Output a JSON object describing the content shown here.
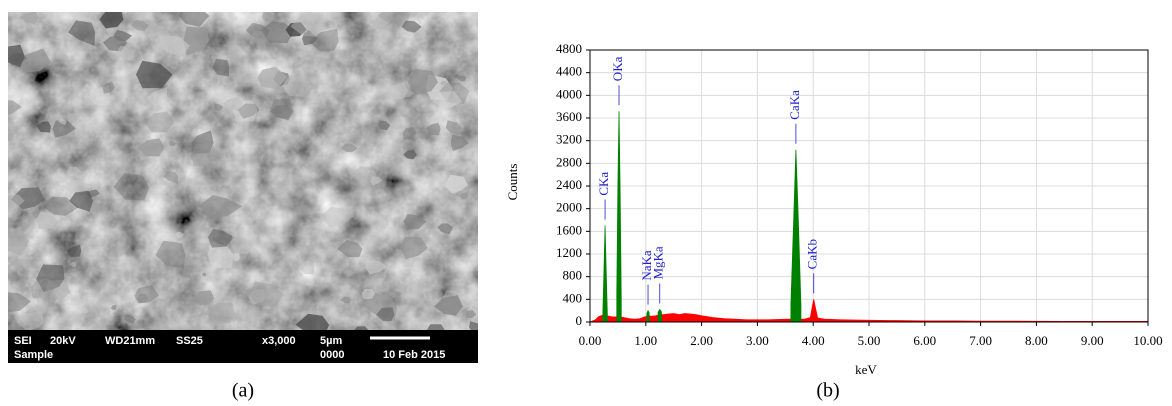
{
  "sem_image": {
    "info_bar": {
      "row1": [
        "SEI",
        "20kV",
        "WD21mm",
        "SS25",
        "x3,000",
        "5µm"
      ],
      "row2": [
        "Sample",
        "0000",
        "10 Feb 2015"
      ]
    }
  },
  "captions": [
    "(a)",
    "(b)"
  ],
  "chart_data": {
    "type": "area",
    "x_label": "keV",
    "y_label": "Counts",
    "x": [
      0,
      0.1,
      0.15,
      0.2,
      0.23,
      0.25,
      0.27,
      0.29,
      0.31,
      0.35,
      0.4,
      0.45,
      0.48,
      0.5,
      0.52,
      0.54,
      0.56,
      0.6,
      0.7,
      0.8,
      0.9,
      0.98,
      1.02,
      1.04,
      1.06,
      1.1,
      1.18,
      1.22,
      1.25,
      1.28,
      1.32,
      1.4,
      1.5,
      1.6,
      1.7,
      1.8,
      1.9,
      2.0,
      2.2,
      2.4,
      2.6,
      2.8,
      3.0,
      3.2,
      3.4,
      3.55,
      3.6,
      3.65,
      3.69,
      3.73,
      3.78,
      3.85,
      3.95,
      3.98,
      4.01,
      4.04,
      4.08,
      4.2,
      4.5,
      5.0,
      5.5,
      6.0,
      6.5,
      7.0,
      7.5,
      8.0,
      8.5,
      9.0,
      9.5,
      10.0
    ],
    "series": [
      {
        "color": "#ff0000",
        "values": [
          0,
          40,
          90,
          110,
          120,
          120,
          120,
          115,
          110,
          100,
          90,
          90,
          90,
          90,
          90,
          90,
          85,
          80,
          60,
          50,
          60,
          90,
          100,
          110,
          110,
          100,
          110,
          120,
          130,
          130,
          130,
          140,
          150,
          130,
          150,
          140,
          130,
          110,
          80,
          60,
          50,
          40,
          40,
          40,
          45,
          50,
          50,
          50,
          50,
          50,
          50,
          50,
          80,
          250,
          400,
          250,
          70,
          50,
          40,
          30,
          25,
          20,
          20,
          15,
          15,
          12,
          10,
          10,
          10,
          10
        ]
      },
      {
        "color": "#008000",
        "values": [
          null,
          null,
          null,
          null,
          150,
          900,
          1700,
          900,
          150,
          null,
          null,
          null,
          500,
          2400,
          3720,
          2300,
          400,
          null,
          null,
          null,
          null,
          null,
          150,
          200,
          160,
          null,
          null,
          170,
          220,
          180,
          null,
          null,
          null,
          null,
          null,
          null,
          null,
          null,
          null,
          null,
          null,
          null,
          null,
          null,
          null,
          null,
          300,
          1800,
          3040,
          1900,
          300,
          null,
          null,
          null,
          null,
          null,
          null,
          null,
          null,
          null,
          null,
          null,
          null,
          null,
          null,
          null,
          null,
          null,
          null,
          null
        ]
      }
    ],
    "annotations": [
      {
        "text": "CKa",
        "x": 0.27
      },
      {
        "text": "OKa",
        "x": 0.52
      },
      {
        "text": "NaKa",
        "x": 1.04
      },
      {
        "text": "MgKa",
        "x": 1.25
      },
      {
        "text": "CaKa",
        "x": 3.69
      },
      {
        "text": "CaKb",
        "x": 4.01
      }
    ],
    "annotation_color": "#2222cc",
    "xlim": [
      0,
      10
    ],
    "xticks": [
      {
        "value": 0,
        "label": "0.00"
      },
      {
        "value": 1,
        "label": "1.00"
      },
      {
        "value": 2,
        "label": "2.00"
      },
      {
        "value": 3,
        "label": "3.00"
      },
      {
        "value": 4,
        "label": "4.00"
      },
      {
        "value": 5,
        "label": "5.00"
      },
      {
        "value": 6,
        "label": "6.00"
      },
      {
        "value": 7,
        "label": "7.00"
      },
      {
        "value": 8,
        "label": "8.00"
      },
      {
        "value": 9,
        "label": "9.00"
      },
      {
        "value": 10,
        "label": "10.00"
      }
    ],
    "ylim": [
      0,
      4800
    ],
    "yticks": [
      0,
      400,
      800,
      1200,
      1600,
      2000,
      2400,
      2800,
      3200,
      3600,
      4000,
      4400,
      4800
    ],
    "grid": true
  }
}
